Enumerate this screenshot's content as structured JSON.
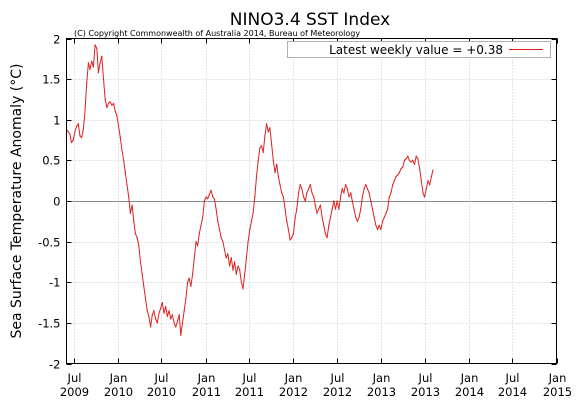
{
  "chart_data": {
    "type": "line",
    "title": "NINO3.4 SST Index",
    "subtitle": "(C) Copyright Commonwealth of Australia 2014, Bureau of Meteorology",
    "xlabel": "",
    "ylabel": "Sea Surface Temperature Anomaly (°C)",
    "ylim": [
      -2,
      2
    ],
    "yticks": [
      "2",
      "1.5",
      "1",
      "0.5",
      "0",
      "-0.5",
      "-1",
      "-1.5",
      "-2"
    ],
    "xlim": [
      "2009-06-01",
      "2015-01-01"
    ],
    "xticks": [
      {
        "date": "2009-07-01",
        "month": "Jul",
        "year": "2009"
      },
      {
        "date": "2010-01-01",
        "month": "Jan",
        "year": "2010"
      },
      {
        "date": "2010-07-01",
        "month": "Jul",
        "year": "2010"
      },
      {
        "date": "2011-01-01",
        "month": "Jan",
        "year": "2011"
      },
      {
        "date": "2011-07-01",
        "month": "Jul",
        "year": "2011"
      },
      {
        "date": "2012-01-01",
        "month": "Jan",
        "year": "2012"
      },
      {
        "date": "2012-07-01",
        "month": "Jul",
        "year": "2012"
      },
      {
        "date": "2013-01-01",
        "month": "Jan",
        "year": "2013"
      },
      {
        "date": "2013-07-01",
        "month": "Jul",
        "year": "2013"
      },
      {
        "date": "2014-01-01",
        "month": "Jan",
        "year": "2014"
      },
      {
        "date": "2014-07-01",
        "month": "Jul",
        "year": "2014"
      },
      {
        "date": "2015-01-01",
        "month": "Jan",
        "year": "2015"
      }
    ],
    "grid": true,
    "legend_position": "top-right",
    "series": [
      {
        "name": "Latest weekly value = +0.38",
        "color": "#e02020",
        "points": [
          [
            "2009-06-01",
            0.88
          ],
          [
            "2009-06-08",
            0.85
          ],
          [
            "2009-06-15",
            0.82
          ],
          [
            "2009-06-22",
            0.72
          ],
          [
            "2009-06-29",
            0.75
          ],
          [
            "2009-07-06",
            0.85
          ],
          [
            "2009-07-13",
            0.92
          ],
          [
            "2009-07-20",
            0.95
          ],
          [
            "2009-07-27",
            0.8
          ],
          [
            "2009-08-03",
            0.78
          ],
          [
            "2009-08-10",
            0.88
          ],
          [
            "2009-08-17",
            1.1
          ],
          [
            "2009-08-24",
            1.45
          ],
          [
            "2009-08-31",
            1.7
          ],
          [
            "2009-09-07",
            1.62
          ],
          [
            "2009-09-14",
            1.72
          ],
          [
            "2009-09-21",
            1.65
          ],
          [
            "2009-09-28",
            1.92
          ],
          [
            "2009-10-05",
            1.88
          ],
          [
            "2009-10-12",
            1.58
          ],
          [
            "2009-10-19",
            1.7
          ],
          [
            "2009-10-26",
            1.78
          ],
          [
            "2009-11-02",
            1.5
          ],
          [
            "2009-11-09",
            1.25
          ],
          [
            "2009-11-16",
            1.15
          ],
          [
            "2009-11-23",
            1.2
          ],
          [
            "2009-11-30",
            1.22
          ],
          [
            "2009-12-07",
            1.18
          ],
          [
            "2009-12-14",
            1.2
          ],
          [
            "2009-12-21",
            1.1
          ],
          [
            "2009-12-28",
            1.05
          ],
          [
            "2010-01-04",
            0.92
          ],
          [
            "2010-01-11",
            0.78
          ],
          [
            "2010-01-18",
            0.62
          ],
          [
            "2010-01-25",
            0.5
          ],
          [
            "2010-02-01",
            0.35
          ],
          [
            "2010-02-08",
            0.2
          ],
          [
            "2010-02-15",
            0.05
          ],
          [
            "2010-02-22",
            -0.15
          ],
          [
            "2010-03-01",
            -0.05
          ],
          [
            "2010-03-08",
            -0.25
          ],
          [
            "2010-03-15",
            -0.4
          ],
          [
            "2010-03-22",
            -0.45
          ],
          [
            "2010-03-29",
            -0.55
          ],
          [
            "2010-04-05",
            -0.75
          ],
          [
            "2010-04-12",
            -0.9
          ],
          [
            "2010-04-19",
            -1.05
          ],
          [
            "2010-04-26",
            -1.2
          ],
          [
            "2010-05-03",
            -1.35
          ],
          [
            "2010-05-10",
            -1.42
          ],
          [
            "2010-05-17",
            -1.55
          ],
          [
            "2010-05-24",
            -1.4
          ],
          [
            "2010-05-31",
            -1.35
          ],
          [
            "2010-06-07",
            -1.45
          ],
          [
            "2010-06-14",
            -1.5
          ],
          [
            "2010-06-21",
            -1.38
          ],
          [
            "2010-06-28",
            -1.32
          ],
          [
            "2010-07-05",
            -1.25
          ],
          [
            "2010-07-12",
            -1.38
          ],
          [
            "2010-07-19",
            -1.3
          ],
          [
            "2010-07-26",
            -1.42
          ],
          [
            "2010-08-02",
            -1.35
          ],
          [
            "2010-08-09",
            -1.45
          ],
          [
            "2010-08-16",
            -1.4
          ],
          [
            "2010-08-23",
            -1.5
          ],
          [
            "2010-08-30",
            -1.55
          ],
          [
            "2010-09-06",
            -1.48
          ],
          [
            "2010-09-13",
            -1.4
          ],
          [
            "2010-09-20",
            -1.65
          ],
          [
            "2010-09-27",
            -1.5
          ],
          [
            "2010-10-04",
            -1.35
          ],
          [
            "2010-10-11",
            -1.2
          ],
          [
            "2010-10-18",
            -1.0
          ],
          [
            "2010-10-25",
            -0.95
          ],
          [
            "2010-11-01",
            -1.05
          ],
          [
            "2010-11-08",
            -0.9
          ],
          [
            "2010-11-15",
            -0.7
          ],
          [
            "2010-11-22",
            -0.5
          ],
          [
            "2010-11-29",
            -0.55
          ],
          [
            "2010-12-06",
            -0.4
          ],
          [
            "2010-12-13",
            -0.3
          ],
          [
            "2010-12-20",
            -0.2
          ],
          [
            "2010-12-27",
            0.0
          ],
          [
            "2011-01-03",
            0.05
          ],
          [
            "2011-01-10",
            0.03
          ],
          [
            "2011-01-17",
            0.08
          ],
          [
            "2011-01-24",
            0.13
          ],
          [
            "2011-01-31",
            0.05
          ],
          [
            "2011-02-07",
            0.02
          ],
          [
            "2011-02-14",
            -0.1
          ],
          [
            "2011-02-21",
            -0.25
          ],
          [
            "2011-02-28",
            -0.35
          ],
          [
            "2011-03-07",
            -0.45
          ],
          [
            "2011-03-14",
            -0.5
          ],
          [
            "2011-03-21",
            -0.6
          ],
          [
            "2011-03-28",
            -0.7
          ],
          [
            "2011-04-04",
            -0.65
          ],
          [
            "2011-04-11",
            -0.8
          ],
          [
            "2011-04-18",
            -0.7
          ],
          [
            "2011-04-25",
            -0.85
          ],
          [
            "2011-05-02",
            -0.75
          ],
          [
            "2011-05-09",
            -0.9
          ],
          [
            "2011-05-16",
            -0.8
          ],
          [
            "2011-05-23",
            -0.85
          ],
          [
            "2011-05-30",
            -1.0
          ],
          [
            "2011-06-06",
            -1.08
          ],
          [
            "2011-06-13",
            -0.9
          ],
          [
            "2011-06-20",
            -0.7
          ],
          [
            "2011-06-27",
            -0.5
          ],
          [
            "2011-07-04",
            -0.35
          ],
          [
            "2011-07-11",
            -0.25
          ],
          [
            "2011-07-18",
            -0.15
          ],
          [
            "2011-07-25",
            0.05
          ],
          [
            "2011-08-01",
            0.3
          ],
          [
            "2011-08-08",
            0.5
          ],
          [
            "2011-08-15",
            0.65
          ],
          [
            "2011-08-22",
            0.68
          ],
          [
            "2011-08-29",
            0.6
          ],
          [
            "2011-09-05",
            0.8
          ],
          [
            "2011-09-12",
            0.95
          ],
          [
            "2011-09-19",
            0.85
          ],
          [
            "2011-09-26",
            0.9
          ],
          [
            "2011-10-03",
            0.7
          ],
          [
            "2011-10-10",
            0.5
          ],
          [
            "2011-10-17",
            0.35
          ],
          [
            "2011-10-24",
            0.45
          ],
          [
            "2011-10-31",
            0.3
          ],
          [
            "2011-11-07",
            0.2
          ],
          [
            "2011-11-14",
            0.1
          ],
          [
            "2011-11-21",
            0.05
          ],
          [
            "2011-11-28",
            -0.1
          ],
          [
            "2011-12-05",
            -0.25
          ],
          [
            "2011-12-12",
            -0.35
          ],
          [
            "2011-12-19",
            -0.48
          ],
          [
            "2011-12-26",
            -0.45
          ],
          [
            "2012-01-02",
            -0.4
          ],
          [
            "2012-01-09",
            -0.2
          ],
          [
            "2012-01-16",
            -0.1
          ],
          [
            "2012-01-23",
            0.1
          ],
          [
            "2012-01-30",
            0.2
          ],
          [
            "2012-02-06",
            0.15
          ],
          [
            "2012-02-13",
            0.05
          ],
          [
            "2012-02-20",
            0.0
          ],
          [
            "2012-02-27",
            0.1
          ],
          [
            "2012-03-05",
            0.15
          ],
          [
            "2012-03-12",
            0.2
          ],
          [
            "2012-03-19",
            0.1
          ],
          [
            "2012-03-26",
            0.05
          ],
          [
            "2012-04-02",
            -0.05
          ],
          [
            "2012-04-09",
            -0.15
          ],
          [
            "2012-04-16",
            -0.1
          ],
          [
            "2012-04-23",
            -0.05
          ],
          [
            "2012-04-30",
            -0.2
          ],
          [
            "2012-05-07",
            -0.3
          ],
          [
            "2012-05-14",
            -0.4
          ],
          [
            "2012-05-21",
            -0.45
          ],
          [
            "2012-05-28",
            -0.3
          ],
          [
            "2012-06-04",
            -0.2
          ],
          [
            "2012-06-11",
            -0.1
          ],
          [
            "2012-06-18",
            0.0
          ],
          [
            "2012-06-25",
            -0.1
          ],
          [
            "2012-07-02",
            0.0
          ],
          [
            "2012-07-09",
            -0.1
          ],
          [
            "2012-07-16",
            0.05
          ],
          [
            "2012-07-23",
            0.15
          ],
          [
            "2012-07-30",
            0.1
          ],
          [
            "2012-08-06",
            0.2
          ],
          [
            "2012-08-13",
            0.15
          ],
          [
            "2012-08-20",
            0.05
          ],
          [
            "2012-08-27",
            0.1
          ],
          [
            "2012-09-03",
            0.0
          ],
          [
            "2012-09-10",
            -0.1
          ],
          [
            "2012-09-17",
            -0.2
          ],
          [
            "2012-09-24",
            -0.25
          ],
          [
            "2012-10-01",
            -0.2
          ],
          [
            "2012-10-08",
            -0.1
          ],
          [
            "2012-10-15",
            0.05
          ],
          [
            "2012-10-22",
            0.15
          ],
          [
            "2012-10-29",
            0.2
          ],
          [
            "2012-11-05",
            0.15
          ],
          [
            "2012-11-12",
            0.1
          ],
          [
            "2012-11-19",
            0.0
          ],
          [
            "2012-11-26",
            -0.1
          ],
          [
            "2012-12-03",
            -0.2
          ],
          [
            "2012-12-10",
            -0.3
          ],
          [
            "2012-12-17",
            -0.35
          ],
          [
            "2012-12-24",
            -0.3
          ],
          [
            "2012-12-31",
            -0.35
          ],
          [
            "2013-01-07",
            -0.25
          ],
          [
            "2013-01-14",
            -0.2
          ],
          [
            "2013-01-21",
            -0.15
          ],
          [
            "2013-01-28",
            -0.1
          ],
          [
            "2013-02-04",
            0.05
          ],
          [
            "2013-02-11",
            0.1
          ],
          [
            "2013-02-18",
            0.2
          ],
          [
            "2013-02-25",
            0.25
          ],
          [
            "2013-03-04",
            0.3
          ],
          [
            "2013-03-11",
            0.32
          ],
          [
            "2013-03-18",
            0.35
          ],
          [
            "2013-03-25",
            0.4
          ],
          [
            "2013-04-01",
            0.42
          ],
          [
            "2013-04-08",
            0.5
          ],
          [
            "2013-04-15",
            0.52
          ],
          [
            "2013-04-22",
            0.55
          ],
          [
            "2013-04-29",
            0.5
          ],
          [
            "2013-05-06",
            0.48
          ],
          [
            "2013-05-13",
            0.5
          ],
          [
            "2013-05-20",
            0.45
          ],
          [
            "2013-05-27",
            0.55
          ],
          [
            "2013-06-03",
            0.52
          ],
          [
            "2013-06-10",
            0.4
          ],
          [
            "2013-06-17",
            0.25
          ],
          [
            "2013-06-24",
            0.1
          ],
          [
            "2013-07-01",
            0.05
          ],
          [
            "2013-07-08",
            0.15
          ],
          [
            "2013-07-15",
            0.25
          ],
          [
            "2013-07-22",
            0.2
          ],
          [
            "2013-07-29",
            0.3
          ],
          [
            "2013-08-05",
            0.38
          ]
        ]
      }
    ],
    "annotations": [
      "(C) Copyright Commonwealth of Australia 2014, Bureau of Meteorology"
    ]
  }
}
